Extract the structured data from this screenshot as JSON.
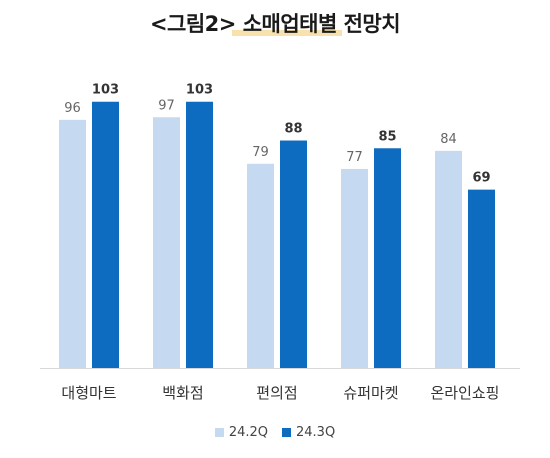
{
  "title": "<그림2> 소매업태별 전망치",
  "colors": {
    "series_prev": "#c5d9f1",
    "series_curr": "#0d6cbf"
  },
  "chart_data": {
    "type": "bar",
    "title": "<그림2> 소매업태별 전망치",
    "xlabel": "",
    "ylabel": "",
    "categories": [
      "대형마트",
      "백화점",
      "편의점",
      "슈퍼마켓",
      "온라인쇼핑"
    ],
    "series": [
      {
        "name": "24.2Q",
        "values": [
          96,
          97,
          79,
          77,
          84
        ]
      },
      {
        "name": "24.3Q",
        "values": [
          103,
          103,
          88,
          85,
          69
        ]
      }
    ],
    "ylim": [
      0,
      110
    ],
    "grid": false,
    "legend": "bottom-center"
  }
}
